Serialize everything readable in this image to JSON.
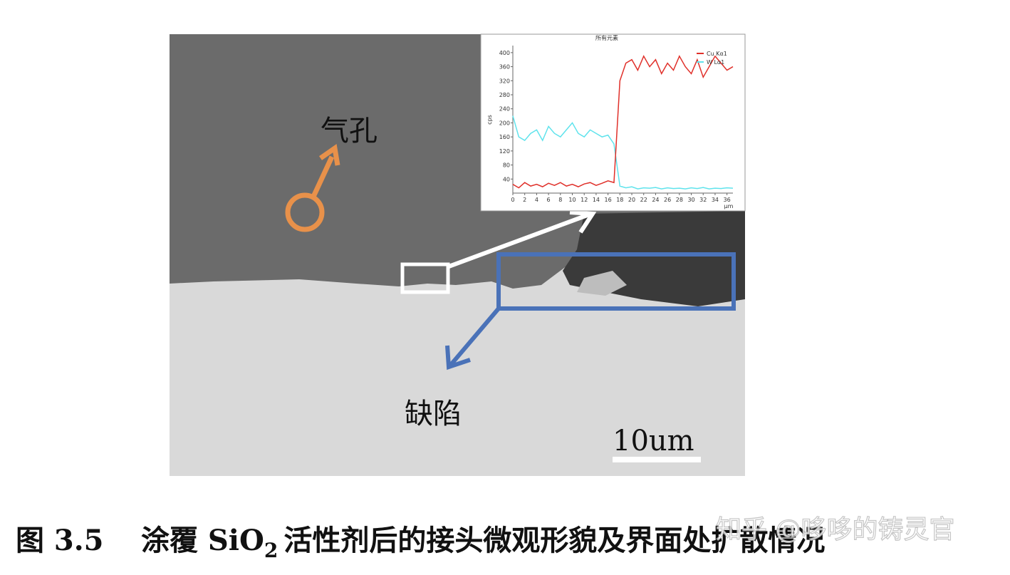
{
  "figure": {
    "annotations": {
      "pore": "气孔",
      "defect": "缺陷"
    },
    "scale_bar": "10um"
  },
  "caption": {
    "label": "图 3.5",
    "text_before": "涂覆 SiO",
    "subscript": "2",
    "text_after": "活性剂后的接头微观形貌及界面处扩散情况"
  },
  "watermark": "知乎 @哆哆的铸灵官",
  "chart_data": {
    "type": "line",
    "title": "所有元素",
    "y_label": "cps",
    "x_label": "μm",
    "x": [
      0,
      1,
      2,
      3,
      4,
      5,
      6,
      7,
      8,
      9,
      10,
      11,
      12,
      13,
      14,
      15,
      16,
      17,
      18,
      19,
      20,
      21,
      22,
      23,
      24,
      25,
      26,
      27,
      28,
      29,
      30,
      31,
      32,
      33,
      34,
      35,
      36,
      37
    ],
    "series": [
      {
        "name": "Cu Kα1",
        "color": "#e0302a",
        "values": [
          25,
          15,
          30,
          20,
          25,
          18,
          28,
          22,
          30,
          20,
          25,
          18,
          26,
          30,
          22,
          28,
          35,
          30,
          320,
          370,
          380,
          350,
          390,
          360,
          380,
          340,
          370,
          350,
          390,
          360,
          340,
          380,
          330,
          360,
          390,
          370,
          350,
          360
        ]
      },
      {
        "name": "W Lα1",
        "color": "#5fe3ec",
        "values": [
          220,
          160,
          150,
          170,
          180,
          150,
          190,
          170,
          160,
          180,
          200,
          170,
          160,
          180,
          170,
          160,
          165,
          140,
          20,
          15,
          18,
          12,
          15,
          14,
          16,
          12,
          15,
          13,
          14,
          12,
          15,
          13,
          16,
          12,
          14,
          13,
          15,
          14
        ]
      }
    ],
    "xlim": [
      0,
      37
    ],
    "xticks": [
      0,
      2,
      4,
      6,
      8,
      10,
      12,
      14,
      16,
      18,
      20,
      22,
      24,
      26,
      28,
      30,
      32,
      34,
      36
    ],
    "ylim": [
      0,
      420
    ],
    "yticks": [
      40,
      80,
      120,
      160,
      200,
      240,
      280,
      320,
      360,
      400
    ]
  }
}
